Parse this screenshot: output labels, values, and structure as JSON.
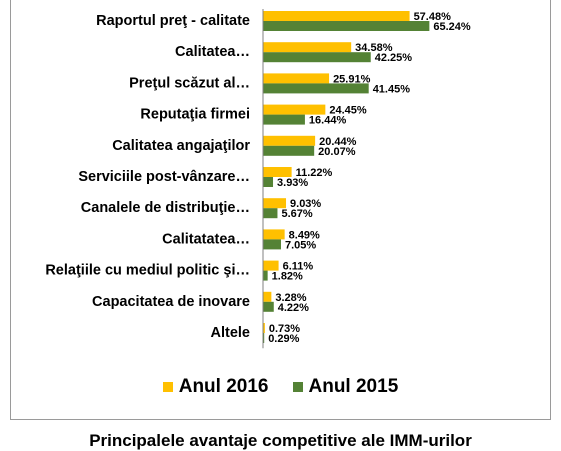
{
  "chart_data": {
    "type": "bar",
    "orientation": "horizontal",
    "title": "Principalele avantaje competitive ale IMM-urilor",
    "categories": [
      "Raportul preţ - calitate",
      "Calitatea…",
      "Preţul scăzut al…",
      "Reputaţia firmei",
      "Calitatea angajaţilor",
      "Serviciile post-vânzare…",
      "Canalele de distribuţie…",
      "Calitatatea…",
      "Relaţiile cu mediul politic şi…",
      "Capacitatea de inovare",
      "Altele"
    ],
    "series": [
      {
        "name": "Anul 2016",
        "color": "#FFC000",
        "values": [
          57.48,
          34.58,
          25.91,
          24.45,
          20.44,
          11.22,
          9.03,
          8.49,
          6.11,
          3.28,
          0.73
        ],
        "labels": [
          "57.48%",
          "34.58%",
          "25.91%",
          "24.45%",
          "20.44%",
          "11.22%",
          "9.03%",
          "8.49%",
          "6.11%",
          "3.28%",
          "0.73%"
        ]
      },
      {
        "name": "Anul 2015",
        "color": "#548235",
        "values": [
          65.24,
          42.25,
          41.45,
          16.44,
          20.07,
          3.93,
          5.67,
          7.05,
          1.82,
          4.22,
          0.29
        ],
        "labels": [
          "65.24%",
          "42.25%",
          "41.45%",
          "16.44%",
          "20.07%",
          "3.93%",
          "5.67%",
          "7.05%",
          "1.82%",
          "4.22%",
          "0.29%"
        ]
      }
    ],
    "xlim": [
      0,
      70
    ],
    "gridlines": false,
    "legend_position": "bottom"
  },
  "legend": {
    "item_2016": "Anul 2016",
    "item_2015": "Anul 2015"
  }
}
